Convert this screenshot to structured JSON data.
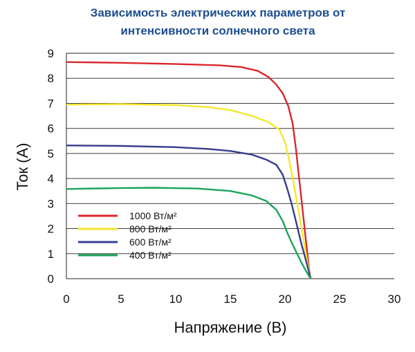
{
  "chart_data": {
    "type": "line",
    "title_lines": [
      "Зависимость электрических параметров от",
      "интенсивности солнечного света"
    ],
    "xlabel": "Напряжение (В)",
    "ylabel": "Ток (А)",
    "xlim": [
      0,
      30
    ],
    "ylim": [
      0,
      9
    ],
    "xticks": [
      0,
      5,
      10,
      15,
      20,
      25,
      30
    ],
    "yticks": [
      0,
      1,
      2,
      3,
      4,
      5,
      6,
      7,
      8,
      9
    ],
    "grid": "horizontal",
    "legend_position": "bottom-left",
    "series": [
      {
        "name": "1000 Вт/м²",
        "color": "#d9262c",
        "x": [
          0,
          5,
          10,
          14,
          16,
          17.5,
          18.5,
          19.2,
          19.8,
          20.3,
          20.7,
          21.0,
          21.3,
          21.6,
          21.9,
          22.2,
          22.35
        ],
        "y": [
          8.65,
          8.62,
          8.57,
          8.52,
          8.45,
          8.3,
          8.05,
          7.75,
          7.4,
          6.9,
          6.2,
          5.2,
          4.0,
          2.8,
          1.6,
          0.4,
          0
        ]
      },
      {
        "name": "800 Вт/м²",
        "color": "#f5e62a",
        "x": [
          0,
          5,
          10,
          13,
          15,
          17,
          18.5,
          19.5,
          20.0,
          20.4,
          20.8,
          21.2,
          21.6,
          22.0,
          22.35
        ],
        "y": [
          6.95,
          6.97,
          6.93,
          6.85,
          6.73,
          6.5,
          6.25,
          5.95,
          5.45,
          4.7,
          3.8,
          2.8,
          1.8,
          0.8,
          0
        ]
      },
      {
        "name": "600 Вт/м²",
        "color": "#343c8f",
        "x": [
          0,
          5,
          10,
          13,
          15,
          17,
          18.3,
          19.2,
          19.8,
          20.2,
          20.6,
          21.0,
          21.5,
          22.0,
          22.35
        ],
        "y": [
          5.32,
          5.3,
          5.25,
          5.18,
          5.1,
          4.95,
          4.75,
          4.55,
          4.15,
          3.6,
          3.0,
          2.3,
          1.4,
          0.6,
          0
        ]
      },
      {
        "name": "400 Вт/м²",
        "color": "#1aa35a",
        "x": [
          0,
          5,
          8,
          12,
          15,
          17,
          18.3,
          19.2,
          19.8,
          20.2,
          20.6,
          21.0,
          21.5,
          22.0,
          22.35
        ],
        "y": [
          3.58,
          3.62,
          3.63,
          3.6,
          3.5,
          3.32,
          3.1,
          2.75,
          2.3,
          1.85,
          1.45,
          1.1,
          0.65,
          0.25,
          0
        ]
      }
    ]
  }
}
